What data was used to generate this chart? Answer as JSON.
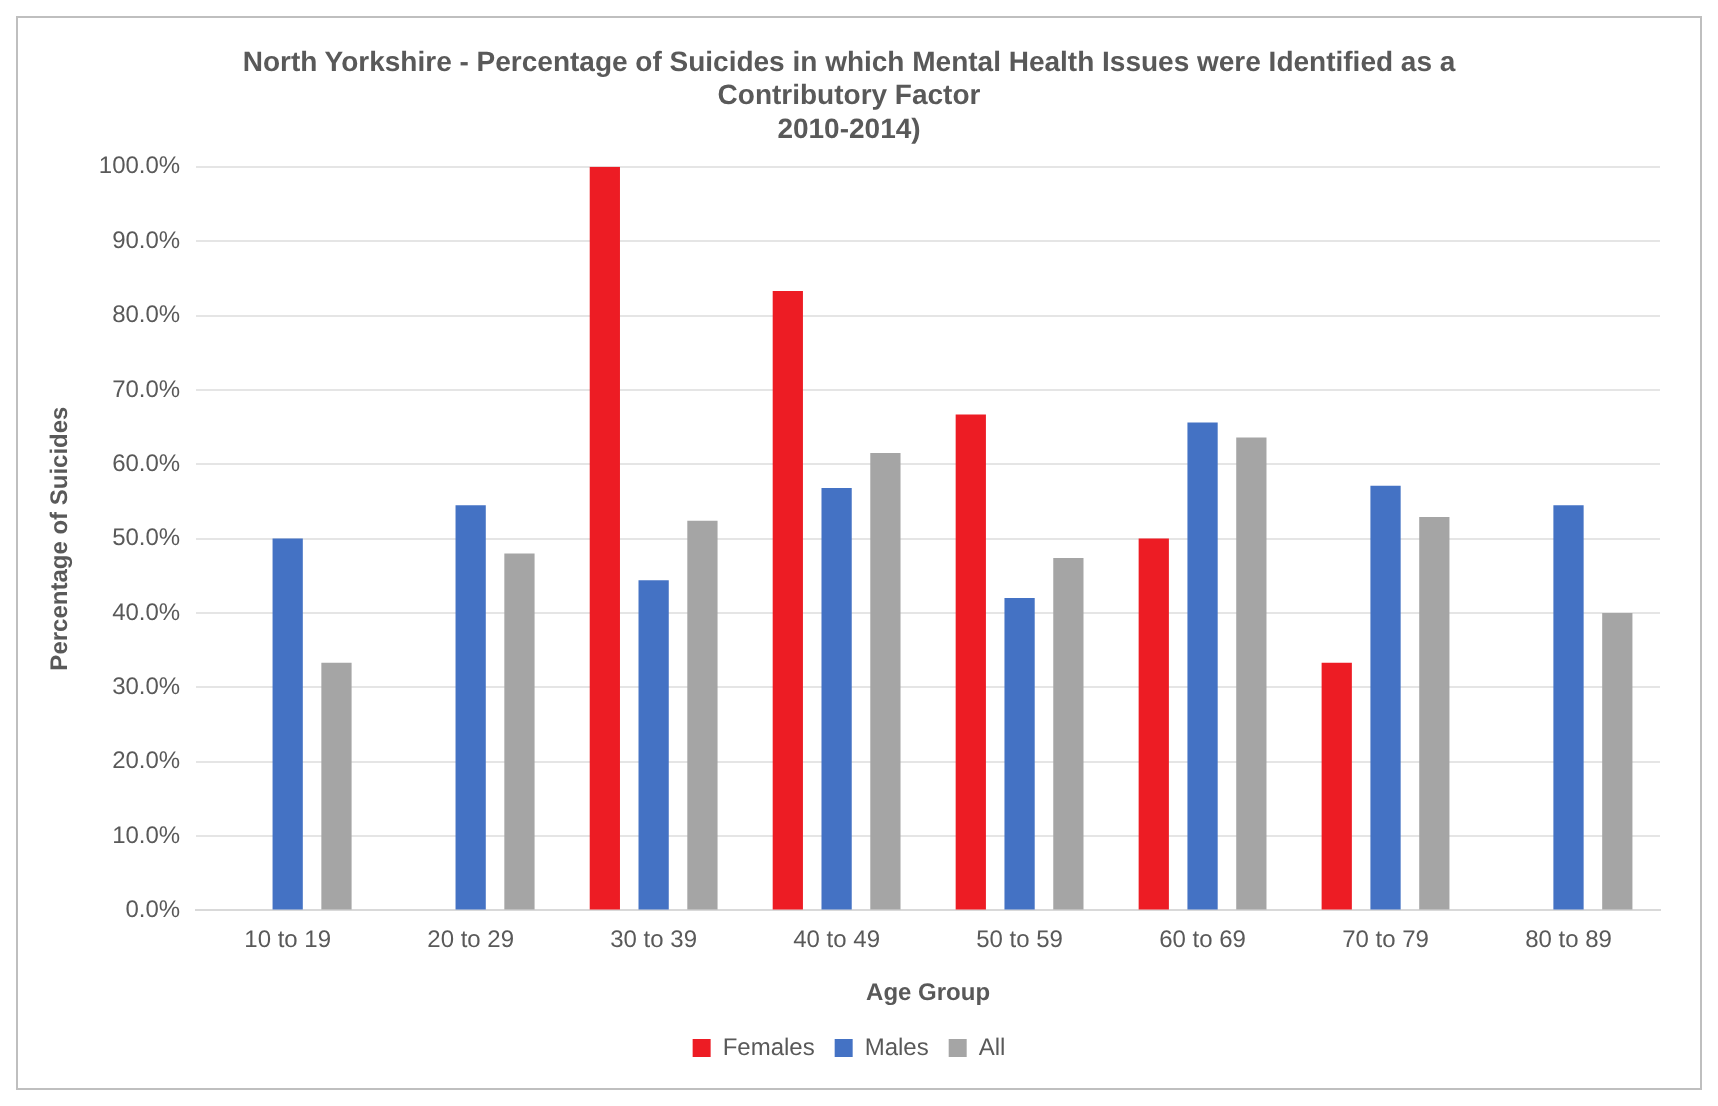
{
  "chart_data": {
    "type": "bar",
    "title": "North Yorkshire - Percentage of Suicides in which Mental Health Issues were Identified as a\nContributory Factor\n2010-2014)",
    "xlabel": "Age Group",
    "ylabel": "Percentage of Suicides",
    "categories": [
      "10 to 19",
      "20 to 29",
      "30 to 39",
      "40 to 49",
      "50 to 59",
      "60 to 69",
      "70 to 79",
      "80 to 89"
    ],
    "series": [
      {
        "name": "Females",
        "color": "#ed1c24",
        "values": [
          0,
          0,
          100,
          83.3,
          66.7,
          50,
          33.3,
          0
        ]
      },
      {
        "name": "Males",
        "color": "#4472c4",
        "values": [
          50,
          54.5,
          44.4,
          56.8,
          42,
          65.6,
          57.1,
          54.5
        ]
      },
      {
        "name": "All",
        "color": "#a5a5a5",
        "values": [
          33.3,
          48,
          52.4,
          61.5,
          47.4,
          63.6,
          52.9,
          40
        ]
      }
    ],
    "ylim": [
      0,
      100
    ],
    "yticks": [
      {
        "value": 0,
        "label": "0.0%"
      },
      {
        "value": 10,
        "label": "10.0%"
      },
      {
        "value": 20,
        "label": "20.0%"
      },
      {
        "value": 30,
        "label": "30.0%"
      },
      {
        "value": 40,
        "label": "40.0%"
      },
      {
        "value": 50,
        "label": "50.0%"
      },
      {
        "value": 60,
        "label": "60.0%"
      },
      {
        "value": 70,
        "label": "70.0%"
      },
      {
        "value": 80,
        "label": "80.0%"
      },
      {
        "value": 90,
        "label": "90.0%"
      },
      {
        "value": 100,
        "label": "100.0%"
      }
    ],
    "grid": "y",
    "legend": "bottom"
  }
}
